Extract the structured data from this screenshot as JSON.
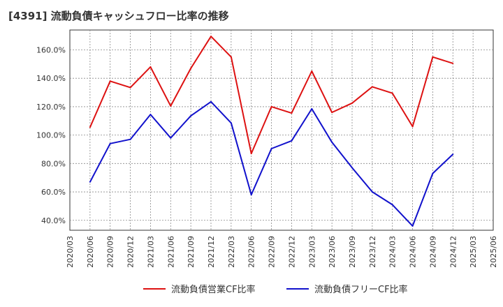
{
  "chart_data": {
    "type": "line",
    "title": "[4391]  流動負債キャッシュフロー比率の推移",
    "xlabel": "",
    "ylabel": "",
    "x_ticks": [
      "2020/03",
      "2020/06",
      "2020/09",
      "2020/12",
      "2021/03",
      "2021/06",
      "2021/09",
      "2021/12",
      "2022/03",
      "2022/06",
      "2022/09",
      "2022/12",
      "2023/03",
      "2023/06",
      "2023/09",
      "2023/12",
      "2024/03",
      "2024/06",
      "2024/09",
      "2024/12",
      "2025/03",
      "2025/06"
    ],
    "y_ticks": [
      "40.0%",
      "60.0%",
      "80.0%",
      "100.0%",
      "120.0%",
      "140.0%",
      "160.0%"
    ],
    "ylim": [
      33,
      174
    ],
    "grid": true,
    "legend_position": "bottom",
    "series": [
      {
        "name": "流動負債営業CF比率",
        "color": "#dd1111",
        "x": [
          "2020/06",
          "2020/09",
          "2020/12",
          "2021/03",
          "2021/06",
          "2021/09",
          "2021/12",
          "2022/03",
          "2022/06",
          "2022/09",
          "2022/12",
          "2023/03",
          "2023/06",
          "2023/09",
          "2023/12",
          "2024/03",
          "2024/06",
          "2024/09",
          "2024/12"
        ],
        "values": [
          105.5,
          138.0,
          133.5,
          148.0,
          120.5,
          147.0,
          169.5,
          155.0,
          87.0,
          120.0,
          115.5,
          145.0,
          116.0,
          122.5,
          134.0,
          129.5,
          106.0,
          155.0,
          150.5
        ]
      },
      {
        "name": "流動負債フリーCF比率",
        "color": "#1111cc",
        "x": [
          "2020/06",
          "2020/09",
          "2020/12",
          "2021/03",
          "2021/06",
          "2021/09",
          "2021/12",
          "2022/03",
          "2022/06",
          "2022/09",
          "2022/12",
          "2023/03",
          "2023/06",
          "2023/09",
          "2023/12",
          "2024/03",
          "2024/06",
          "2024/09",
          "2024/12"
        ],
        "values": [
          67.0,
          94.0,
          97.0,
          114.5,
          98.0,
          113.5,
          123.5,
          108.5,
          58.0,
          90.5,
          96.0,
          118.5,
          95.0,
          77.0,
          60.0,
          51.0,
          36.0,
          73.0,
          86.5
        ]
      }
    ]
  }
}
